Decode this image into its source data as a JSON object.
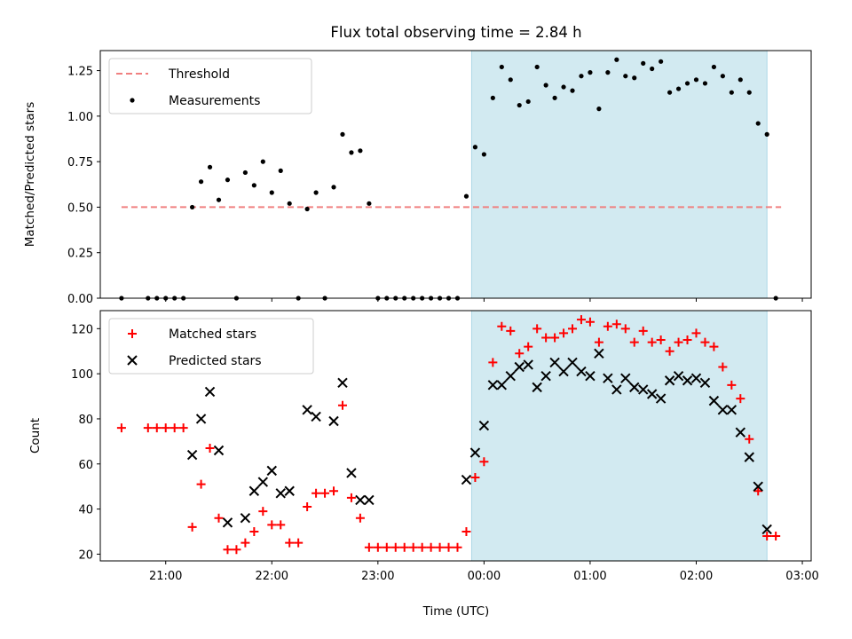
{
  "figure_title": "Flux total observing time = 2.84 h",
  "xlabel": "Time (UTC)",
  "colors": {
    "shade": "#add8e6",
    "threshold": "#f08080",
    "matched": "#ff0000",
    "predicted": "#000000",
    "measurement": "#000000"
  },
  "chart_data": [
    {
      "type": "scatter",
      "title": "Flux total observing time = 2.84 h",
      "xlabel": "",
      "ylabel": "Matched/Predicted stars",
      "xlim": [
        "20:23",
        "03:05"
      ],
      "ylim": [
        0,
        1.36
      ],
      "yticks": [
        "0.00",
        "0.25",
        "0.50",
        "0.75",
        "1.00",
        "1.25"
      ],
      "ytick_values": [
        0,
        0.25,
        0.5,
        0.75,
        1.0,
        1.25
      ],
      "legend_position": "top-left",
      "legend": [
        {
          "label": "Threshold",
          "style": "dashed-line",
          "color": "#f08080"
        },
        {
          "label": "Measurements",
          "style": "dot",
          "color": "#000000"
        }
      ],
      "shaded_region": {
        "x": [
          "23:53",
          "02:40"
        ],
        "color": "#add8e6"
      },
      "threshold": {
        "name": "Threshold",
        "y": 0.5,
        "x": [
          "20:35",
          "02:48"
        ]
      },
      "series": [
        {
          "name": "Measurements",
          "marker": "dot",
          "color": "#000000",
          "points": [
            [
              "20:35",
              0.0
            ],
            [
              "20:50",
              0.0
            ],
            [
              "20:55",
              0.0
            ],
            [
              "21:00",
              0.0
            ],
            [
              "21:05",
              0.0
            ],
            [
              "21:10",
              0.0
            ],
            [
              "21:15",
              0.5
            ],
            [
              "21:20",
              0.64
            ],
            [
              "21:25",
              0.72
            ],
            [
              "21:30",
              0.54
            ],
            [
              "21:35",
              0.65
            ],
            [
              "21:40",
              0.0
            ],
            [
              "21:45",
              0.69
            ],
            [
              "21:50",
              0.62
            ],
            [
              "21:55",
              0.75
            ],
            [
              "22:00",
              0.58
            ],
            [
              "22:05",
              0.7
            ],
            [
              "22:10",
              0.52
            ],
            [
              "22:15",
              0.0
            ],
            [
              "22:20",
              0.49
            ],
            [
              "22:25",
              0.58
            ],
            [
              "22:30",
              0.0
            ],
            [
              "22:35",
              0.61
            ],
            [
              "22:40",
              0.9
            ],
            [
              "22:45",
              0.8
            ],
            [
              "22:50",
              0.81
            ],
            [
              "22:55",
              0.52
            ],
            [
              "23:00",
              0.0
            ],
            [
              "23:05",
              0.0
            ],
            [
              "23:10",
              0.0
            ],
            [
              "23:15",
              0.0
            ],
            [
              "23:20",
              0.0
            ],
            [
              "23:25",
              0.0
            ],
            [
              "23:30",
              0.0
            ],
            [
              "23:35",
              0.0
            ],
            [
              "23:40",
              0.0
            ],
            [
              "23:45",
              0.0
            ],
            [
              "23:50",
              0.56
            ],
            [
              "23:55",
              0.83
            ],
            [
              "24:00",
              0.79
            ],
            [
              "24:05",
              1.1
            ],
            [
              "24:10",
              1.27
            ],
            [
              "24:15",
              1.2
            ],
            [
              "24:20",
              1.06
            ],
            [
              "24:25",
              1.08
            ],
            [
              "24:30",
              1.27
            ],
            [
              "24:35",
              1.17
            ],
            [
              "24:40",
              1.1
            ],
            [
              "24:45",
              1.16
            ],
            [
              "24:50",
              1.14
            ],
            [
              "24:55",
              1.22
            ],
            [
              "25:00",
              1.24
            ],
            [
              "25:05",
              1.04
            ],
            [
              "25:10",
              1.24
            ],
            [
              "25:15",
              1.31
            ],
            [
              "25:20",
              1.22
            ],
            [
              "25:25",
              1.21
            ],
            [
              "25:30",
              1.29
            ],
            [
              "25:35",
              1.26
            ],
            [
              "25:40",
              1.3
            ],
            [
              "25:45",
              1.13
            ],
            [
              "25:50",
              1.15
            ],
            [
              "25:55",
              1.18
            ],
            [
              "26:00",
              1.2
            ],
            [
              "26:05",
              1.18
            ],
            [
              "26:10",
              1.27
            ],
            [
              "26:15",
              1.22
            ],
            [
              "26:20",
              1.13
            ],
            [
              "26:25",
              1.2
            ],
            [
              "26:30",
              1.13
            ],
            [
              "26:35",
              0.96
            ],
            [
              "26:40",
              0.9
            ],
            [
              "26:45",
              0.0
            ]
          ]
        }
      ]
    },
    {
      "type": "scatter",
      "title": "",
      "xlabel": "Time (UTC)",
      "ylabel": "Count",
      "xlim": [
        "20:23",
        "03:05"
      ],
      "ylim": [
        17,
        128
      ],
      "yticks": [
        "20",
        "40",
        "60",
        "80",
        "100",
        "120"
      ],
      "ytick_values": [
        20,
        40,
        60,
        80,
        100,
        120
      ],
      "xticks": [
        "21:00",
        "22:00",
        "23:00",
        "00:00",
        "01:00",
        "02:00",
        "03:00"
      ],
      "legend_position": "top-left",
      "legend": [
        {
          "label": "Matched stars",
          "style": "plus",
          "color": "#ff0000"
        },
        {
          "label": "Predicted stars",
          "style": "x",
          "color": "#000000"
        }
      ],
      "shaded_region": {
        "x": [
          "23:53",
          "02:40"
        ],
        "color": "#add8e6"
      },
      "series": [
        {
          "name": "Matched stars",
          "marker": "plus",
          "color": "#ff0000",
          "points": [
            [
              "20:35",
              76
            ],
            [
              "20:50",
              76
            ],
            [
              "20:55",
              76
            ],
            [
              "21:00",
              76
            ],
            [
              "21:05",
              76
            ],
            [
              "21:10",
              76
            ],
            [
              "21:15",
              32
            ],
            [
              "21:20",
              51
            ],
            [
              "21:25",
              67
            ],
            [
              "21:30",
              36
            ],
            [
              "21:35",
              22
            ],
            [
              "21:40",
              22
            ],
            [
              "21:45",
              25
            ],
            [
              "21:50",
              30
            ],
            [
              "21:55",
              39
            ],
            [
              "22:00",
              33
            ],
            [
              "22:05",
              33
            ],
            [
              "22:10",
              25
            ],
            [
              "22:15",
              25
            ],
            [
              "22:20",
              41
            ],
            [
              "22:25",
              47
            ],
            [
              "22:30",
              47
            ],
            [
              "22:35",
              48
            ],
            [
              "22:40",
              86
            ],
            [
              "22:45",
              45
            ],
            [
              "22:50",
              36
            ],
            [
              "22:55",
              23
            ],
            [
              "23:00",
              23
            ],
            [
              "23:05",
              23
            ],
            [
              "23:10",
              23
            ],
            [
              "23:15",
              23
            ],
            [
              "23:20",
              23
            ],
            [
              "23:25",
              23
            ],
            [
              "23:30",
              23
            ],
            [
              "23:35",
              23
            ],
            [
              "23:40",
              23
            ],
            [
              "23:45",
              23
            ],
            [
              "23:50",
              30
            ],
            [
              "23:55",
              54
            ],
            [
              "24:00",
              61
            ],
            [
              "24:05",
              105
            ],
            [
              "24:10",
              121
            ],
            [
              "24:15",
              119
            ],
            [
              "24:20",
              109
            ],
            [
              "24:25",
              112
            ],
            [
              "24:30",
              120
            ],
            [
              "24:35",
              116
            ],
            [
              "24:40",
              116
            ],
            [
              "24:45",
              118
            ],
            [
              "24:50",
              120
            ],
            [
              "24:55",
              124
            ],
            [
              "25:00",
              123
            ],
            [
              "25:05",
              114
            ],
            [
              "25:10",
              121
            ],
            [
              "25:15",
              122
            ],
            [
              "25:20",
              120
            ],
            [
              "25:25",
              114
            ],
            [
              "25:30",
              119
            ],
            [
              "25:35",
              114
            ],
            [
              "25:40",
              115
            ],
            [
              "25:45",
              110
            ],
            [
              "25:50",
              114
            ],
            [
              "25:55",
              115
            ],
            [
              "26:00",
              118
            ],
            [
              "26:05",
              114
            ],
            [
              "26:10",
              112
            ],
            [
              "26:15",
              103
            ],
            [
              "26:20",
              95
            ],
            [
              "26:25",
              89
            ],
            [
              "26:30",
              71
            ],
            [
              "26:35",
              48
            ],
            [
              "26:40",
              28
            ],
            [
              "26:45",
              28
            ]
          ]
        },
        {
          "name": "Predicted stars",
          "marker": "x",
          "color": "#000000",
          "points": [
            [
              "21:15",
              64
            ],
            [
              "21:20",
              80
            ],
            [
              "21:25",
              92
            ],
            [
              "21:30",
              66
            ],
            [
              "21:35",
              34
            ],
            [
              "21:45",
              36
            ],
            [
              "21:50",
              48
            ],
            [
              "21:55",
              52
            ],
            [
              "22:00",
              57
            ],
            [
              "22:05",
              47
            ],
            [
              "22:10",
              48
            ],
            [
              "22:20",
              84
            ],
            [
              "22:25",
              81
            ],
            [
              "22:35",
              79
            ],
            [
              "22:40",
              96
            ],
            [
              "22:45",
              56
            ],
            [
              "22:50",
              44
            ],
            [
              "22:55",
              44
            ],
            [
              "23:50",
              53
            ],
            [
              "23:55",
              65
            ],
            [
              "24:00",
              77
            ],
            [
              "24:05",
              95
            ],
            [
              "24:10",
              95
            ],
            [
              "24:15",
              99
            ],
            [
              "24:20",
              103
            ],
            [
              "24:25",
              104
            ],
            [
              "24:30",
              94
            ],
            [
              "24:35",
              99
            ],
            [
              "24:40",
              105
            ],
            [
              "24:45",
              101
            ],
            [
              "24:50",
              105
            ],
            [
              "24:55",
              101
            ],
            [
              "25:00",
              99
            ],
            [
              "25:05",
              109
            ],
            [
              "25:10",
              98
            ],
            [
              "25:15",
              93
            ],
            [
              "25:20",
              98
            ],
            [
              "25:25",
              94
            ],
            [
              "25:30",
              93
            ],
            [
              "25:35",
              91
            ],
            [
              "25:40",
              89
            ],
            [
              "25:45",
              97
            ],
            [
              "25:50",
              99
            ],
            [
              "25:55",
              97
            ],
            [
              "26:00",
              98
            ],
            [
              "26:05",
              96
            ],
            [
              "26:10",
              88
            ],
            [
              "26:15",
              84
            ],
            [
              "26:20",
              84
            ],
            [
              "26:25",
              74
            ],
            [
              "26:30",
              63
            ],
            [
              "26:35",
              50
            ],
            [
              "26:40",
              31
            ]
          ]
        }
      ]
    }
  ]
}
